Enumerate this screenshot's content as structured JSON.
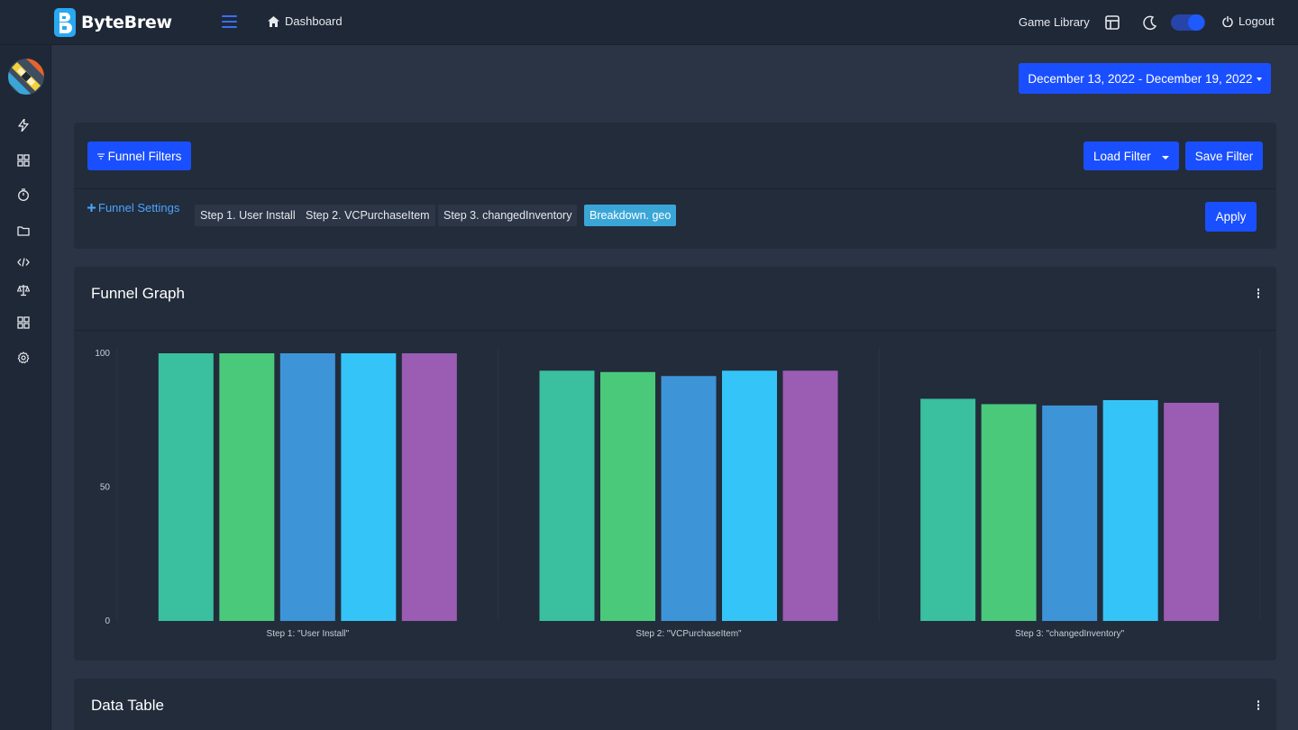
{
  "app": {
    "name": "ByteBrew"
  },
  "topbar": {
    "dashboard_label": "Dashboard",
    "game_library_label": "Game Library",
    "logout_label": "Logout",
    "theme_toggle_on": true
  },
  "sidebar": {
    "items": [
      {
        "icon": "lightning-icon"
      },
      {
        "icon": "grid-icon"
      },
      {
        "icon": "stopwatch-icon"
      },
      {
        "icon": "folder-icon"
      },
      {
        "icon": "code-icon"
      },
      {
        "icon": "scale-icon"
      },
      {
        "icon": "apps-grid-icon"
      },
      {
        "icon": "gear-icon"
      }
    ]
  },
  "date_range": {
    "label": "December 13, 2022 - December 19, 2022"
  },
  "filters": {
    "funnel_filters_label": "Funnel Filters",
    "load_filter_label": "Load Filter",
    "save_filter_label": "Save Filter",
    "funnel_settings_label": "Funnel Settings",
    "apply_label": "Apply",
    "chips": [
      {
        "label": "Step 1. User Install",
        "active": false
      },
      {
        "label": "Step 2. VCPurchaseItem",
        "active": false
      },
      {
        "label": "Step 3. changedInventory",
        "active": false
      },
      {
        "label": "Breakdown. geo",
        "active": true
      }
    ]
  },
  "funnel_graph": {
    "title": "Funnel Graph"
  },
  "data_table": {
    "title": "Data Table"
  },
  "colors": {
    "accent": "#1a4fff",
    "series": [
      "#3abf9f",
      "#4ac97a",
      "#3d95d8",
      "#35c4f7",
      "#9b5cb4"
    ]
  },
  "chart_data": {
    "type": "bar",
    "categories": [
      "Step 1: \"User Install\"",
      "Step 2: \"VCPurchaseItem\"",
      "Step 3: \"changedInventory\""
    ],
    "series": [
      {
        "values": [
          100,
          93.5,
          83
        ]
      },
      {
        "values": [
          100,
          93,
          81
        ]
      },
      {
        "values": [
          100,
          91.5,
          80.5
        ]
      },
      {
        "values": [
          100,
          93.5,
          82.5
        ]
      },
      {
        "values": [
          100,
          93.5,
          81.5
        ]
      }
    ],
    "yticks": [
      "0",
      "50",
      "100"
    ],
    "ylim": [
      0,
      100
    ],
    "title": "",
    "xlabel": "",
    "ylabel": "",
    "legend": "none"
  }
}
